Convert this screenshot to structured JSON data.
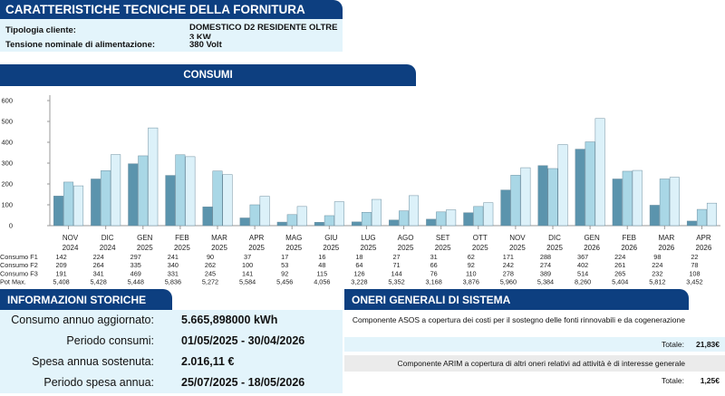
{
  "technical": {
    "title": "CARATTERISTICHE TECNICHE DELLA FORNITURA",
    "rows": [
      {
        "label": "Tipologia cliente:",
        "value": "DOMESTICO D2 RESIDENTE OLTRE 3 KW"
      },
      {
        "label": "Tensione nominale di alimentazione:",
        "value": "380 Volt"
      }
    ]
  },
  "consumi": {
    "title": "CONSUMI"
  },
  "chart_data": {
    "type": "bar",
    "categories": [
      [
        "NOV",
        "2024"
      ],
      [
        "DIC",
        "2024"
      ],
      [
        "GEN",
        "2025"
      ],
      [
        "FEB",
        "2025"
      ],
      [
        "MAR",
        "2025"
      ],
      [
        "APR",
        "2025"
      ],
      [
        "MAG",
        "2025"
      ],
      [
        "GIU",
        "2025"
      ],
      [
        "LUG",
        "2025"
      ],
      [
        "AGO",
        "2025"
      ],
      [
        "SET",
        "2025"
      ],
      [
        "OTT",
        "2025"
      ],
      [
        "NOV",
        "2025"
      ],
      [
        "DIC",
        "2025"
      ],
      [
        "GEN",
        "2026"
      ],
      [
        "FEB",
        "2026"
      ],
      [
        "MAR",
        "2026"
      ],
      [
        "APR",
        "2026"
      ]
    ],
    "series": [
      {
        "name": "Consumo F1",
        "color": "#5b94ad",
        "values": [
          142,
          224,
          297,
          241,
          90,
          37,
          17,
          16,
          18,
          27,
          31,
          62,
          171,
          288,
          367,
          224,
          98,
          22
        ]
      },
      {
        "name": "Consumo F2",
        "color": "#a9d7e6",
        "values": [
          209,
          264,
          335,
          340,
          262,
          100,
          53,
          48,
          64,
          71,
          66,
          92,
          242,
          274,
          402,
          261,
          224,
          78
        ]
      },
      {
        "name": "Consumo F3",
        "color": "#dcf1f9",
        "values": [
          191,
          341,
          469,
          331,
          245,
          141,
          92,
          115,
          126,
          144,
          76,
          110,
          278,
          389,
          514,
          265,
          232,
          108
        ]
      }
    ],
    "pot_max": {
      "name": "Pot Max.",
      "values": [
        "5,408",
        "5,428",
        "5,448",
        "5,836",
        "5,272",
        "5,584",
        "5,456",
        "4,056",
        "3,228",
        "5,352",
        "3,168",
        "3,876",
        "5,960",
        "5,384",
        "8,260",
        "5,404",
        "5,812",
        "3,452"
      ]
    },
    "yticks": [
      0,
      100,
      200,
      300,
      400,
      500,
      600
    ],
    "ylim": [
      0,
      620
    ],
    "grid": false
  },
  "storiche": {
    "title": "INFORMAZIONI STORICHE",
    "rows": [
      {
        "label": "Consumo annuo aggiornato:",
        "value": "5.665,898000 kWh"
      },
      {
        "label": "Periodo consumi:",
        "value": "01/05/2025 - 30/04/2026"
      },
      {
        "label": "Spesa annua sostenuta:",
        "value": "2.016,11 €"
      },
      {
        "label": "Periodo spesa annua:",
        "value": "25/07/2025 - 18/05/2026"
      }
    ]
  },
  "oneri": {
    "title": "ONERI GENERALI DI SISTEMA",
    "items": [
      {
        "desc": "Componente ASOS a copertura dei costi per il sostegno delle fonti rinnovabili e da cogenerazione",
        "total_label": "Totale:",
        "total": "21,83€"
      },
      {
        "desc": "Componente ARIM a copertura di altri oneri relativi ad attività è di interesse generale",
        "total_label": "Totale:",
        "total": "1,25€"
      }
    ]
  }
}
